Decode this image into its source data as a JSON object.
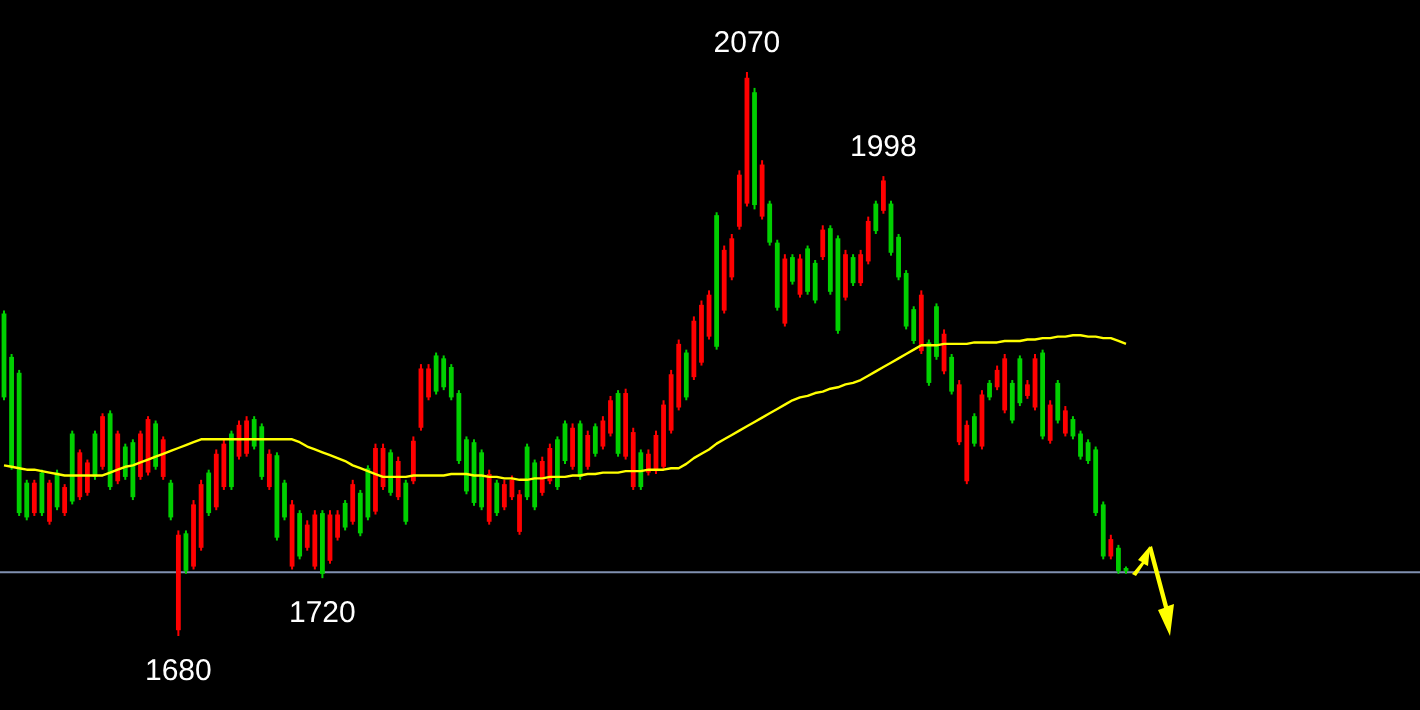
{
  "chart_data": {
    "type": "candlestick",
    "categories": [
      null,
      null,
      null,
      null,
      null,
      null,
      null,
      null,
      null,
      null,
      null,
      null,
      null,
      null,
      null,
      null,
      null,
      null,
      null,
      null,
      null,
      null,
      null,
      null,
      null,
      null,
      null,
      null,
      null,
      null,
      null,
      null,
      null,
      null,
      null,
      null,
      null,
      null,
      null,
      null,
      null,
      null,
      null,
      null,
      null,
      null,
      null,
      null,
      null,
      null,
      null,
      null,
      null,
      null,
      null,
      null,
      null,
      null,
      null,
      null,
      null,
      null,
      null,
      null,
      null,
      null,
      null,
      null,
      null,
      null,
      null,
      null,
      null,
      null,
      null,
      null,
      null,
      null,
      null,
      null,
      null,
      null,
      null,
      null,
      null,
      null,
      null,
      null,
      null,
      null,
      null,
      null,
      null,
      null,
      null,
      null,
      null,
      null,
      null,
      null,
      null,
      null,
      null,
      null,
      null,
      null,
      null,
      null,
      null,
      null,
      null,
      null,
      null,
      null,
      null,
      null,
      null,
      null,
      null,
      null,
      null,
      null,
      null,
      null,
      null,
      null,
      null,
      null,
      null,
      null,
      null,
      null,
      null,
      null,
      null,
      null,
      null,
      null,
      null,
      null,
      null,
      null,
      null,
      null,
      null,
      null,
      null,
      null,
      null
    ],
    "ohlc": [
      [
        1903,
        1905,
        1843,
        1845
      ],
      [
        1873,
        1875,
        1795,
        1797
      ],
      [
        1862,
        1864,
        1763,
        1765
      ],
      [
        1786,
        1788,
        1760,
        1762
      ],
      [
        1765,
        1788,
        1763,
        1786
      ],
      [
        1793,
        1795,
        1763,
        1765
      ],
      [
        1759,
        1788,
        1757,
        1786
      ],
      [
        1793,
        1795,
        1767,
        1769
      ],
      [
        1765,
        1785,
        1763,
        1783
      ],
      [
        1820,
        1822,
        1771,
        1773
      ],
      [
        1776,
        1809,
        1774,
        1807
      ],
      [
        1779,
        1802,
        1777,
        1800
      ],
      [
        1820,
        1822,
        1788,
        1790
      ],
      [
        1797,
        1834,
        1795,
        1832
      ],
      [
        1834,
        1836,
        1781,
        1783
      ],
      [
        1787,
        1822,
        1785,
        1820
      ],
      [
        1811,
        1813,
        1788,
        1790
      ],
      [
        1814,
        1816,
        1774,
        1776
      ],
      [
        1790,
        1822,
        1788,
        1820
      ],
      [
        1793,
        1832,
        1791,
        1830
      ],
      [
        1827,
        1829,
        1795,
        1797
      ],
      [
        1790,
        1818,
        1788,
        1816
      ],
      [
        1786,
        1788,
        1760,
        1762
      ],
      [
        1684,
        1753,
        1680,
        1750
      ],
      [
        1751,
        1753,
        1723,
        1725
      ],
      [
        1728,
        1774,
        1726,
        1771
      ],
      [
        1741,
        1788,
        1739,
        1785
      ],
      [
        1793,
        1795,
        1763,
        1765
      ],
      [
        1769,
        1809,
        1767,
        1806
      ],
      [
        1783,
        1816,
        1781,
        1813
      ],
      [
        1820,
        1822,
        1781,
        1783
      ],
      [
        1804,
        1829,
        1802,
        1826
      ],
      [
        1806,
        1832,
        1804,
        1829
      ],
      [
        1830,
        1832,
        1809,
        1811
      ],
      [
        1825,
        1827,
        1788,
        1790
      ],
      [
        1783,
        1809,
        1781,
        1806
      ],
      [
        1805,
        1807,
        1746,
        1748
      ],
      [
        1786,
        1788,
        1760,
        1762
      ],
      [
        1728,
        1774,
        1726,
        1771
      ],
      [
        1765,
        1767,
        1733,
        1735
      ],
      [
        1741,
        1760,
        1739,
        1757
      ],
      [
        1728,
        1767,
        1726,
        1764
      ],
      [
        1765,
        1767,
        1720,
        1723
      ],
      [
        1732,
        1767,
        1730,
        1764
      ],
      [
        1748,
        1767,
        1746,
        1764
      ],
      [
        1772,
        1774,
        1753,
        1755
      ],
      [
        1759,
        1788,
        1757,
        1785
      ],
      [
        1779,
        1781,
        1749,
        1751
      ],
      [
        1796,
        1798,
        1760,
        1762
      ],
      [
        1766,
        1813,
        1764,
        1810
      ],
      [
        1783,
        1813,
        1781,
        1810
      ],
      [
        1807,
        1809,
        1777,
        1779
      ],
      [
        1776,
        1804,
        1774,
        1801
      ],
      [
        1786,
        1788,
        1757,
        1759
      ],
      [
        1787,
        1818,
        1785,
        1815
      ],
      [
        1824,
        1868,
        1822,
        1865
      ],
      [
        1845,
        1868,
        1843,
        1865
      ],
      [
        1874,
        1876,
        1847,
        1849
      ],
      [
        1872,
        1874,
        1850,
        1852
      ],
      [
        1866,
        1868,
        1843,
        1845
      ],
      [
        1848,
        1850,
        1799,
        1801
      ],
      [
        1816,
        1818,
        1778,
        1780
      ],
      [
        1814,
        1816,
        1770,
        1772
      ],
      [
        1807,
        1809,
        1767,
        1769
      ],
      [
        1759,
        1795,
        1757,
        1792
      ],
      [
        1786,
        1788,
        1763,
        1765
      ],
      [
        1769,
        1788,
        1767,
        1785
      ],
      [
        1776,
        1791,
        1774,
        1788
      ],
      [
        1752,
        1781,
        1750,
        1778
      ],
      [
        1811,
        1813,
        1774,
        1776
      ],
      [
        1800,
        1802,
        1767,
        1769
      ],
      [
        1779,
        1804,
        1777,
        1801
      ],
      [
        1787,
        1813,
        1785,
        1810
      ],
      [
        1816,
        1818,
        1781,
        1783
      ],
      [
        1827,
        1829,
        1799,
        1801
      ],
      [
        1797,
        1827,
        1795,
        1824
      ],
      [
        1827,
        1829,
        1788,
        1790
      ],
      [
        1797,
        1822,
        1795,
        1819
      ],
      [
        1825,
        1827,
        1804,
        1806
      ],
      [
        1811,
        1832,
        1809,
        1829
      ],
      [
        1820,
        1846,
        1818,
        1843
      ],
      [
        1848,
        1850,
        1804,
        1806
      ],
      [
        1804,
        1851,
        1802,
        1848
      ],
      [
        1783,
        1824,
        1781,
        1821
      ],
      [
        1807,
        1809,
        1781,
        1783
      ],
      [
        1793,
        1809,
        1791,
        1806
      ],
      [
        1794,
        1822,
        1792,
        1819
      ],
      [
        1797,
        1843,
        1795,
        1840
      ],
      [
        1822,
        1864,
        1820,
        1861
      ],
      [
        1838,
        1885,
        1836,
        1882
      ],
      [
        1876,
        1878,
        1843,
        1845
      ],
      [
        1859,
        1901,
        1857,
        1898
      ],
      [
        1869,
        1912,
        1867,
        1909
      ],
      [
        1887,
        1919,
        1885,
        1916
      ],
      [
        1971,
        1973,
        1878,
        1880
      ],
      [
        1905,
        1950,
        1903,
        1947
      ],
      [
        1928,
        1958,
        1926,
        1955
      ],
      [
        1963,
        2002,
        1961,
        1999
      ],
      [
        1979,
        2070,
        1977,
        2066
      ],
      [
        2056,
        2059,
        1975,
        1978
      ],
      [
        1970,
        2009,
        1968,
        2006
      ],
      [
        1979,
        1981,
        1950,
        1952
      ],
      [
        1952,
        1954,
        1905,
        1907
      ],
      [
        1896,
        1944,
        1894,
        1941
      ],
      [
        1942,
        1944,
        1923,
        1925
      ],
      [
        1916,
        1944,
        1914,
        1941
      ],
      [
        1948,
        1950,
        1916,
        1918
      ],
      [
        1938,
        1940,
        1910,
        1912
      ],
      [
        1942,
        1964,
        1940,
        1961
      ],
      [
        1962,
        1964,
        1916,
        1918
      ],
      [
        1955,
        1957,
        1889,
        1891
      ],
      [
        1914,
        1947,
        1912,
        1944
      ],
      [
        1942,
        1944,
        1922,
        1924
      ],
      [
        1924,
        1947,
        1922,
        1944
      ],
      [
        1939,
        1970,
        1937,
        1967
      ],
      [
        1979,
        1981,
        1958,
        1960
      ],
      [
        1974,
        1998,
        1972,
        1995
      ],
      [
        1979,
        1981,
        1943,
        1945
      ],
      [
        1956,
        1958,
        1926,
        1928
      ],
      [
        1931,
        1933,
        1892,
        1894
      ],
      [
        1906,
        1908,
        1882,
        1884
      ],
      [
        1877,
        1919,
        1875,
        1916
      ],
      [
        1883,
        1885,
        1853,
        1855
      ],
      [
        1908,
        1910,
        1871,
        1873
      ],
      [
        1863,
        1892,
        1861,
        1889
      ],
      [
        1873,
        1875,
        1847,
        1849
      ],
      [
        1814,
        1857,
        1812,
        1854
      ],
      [
        1787,
        1829,
        1785,
        1826
      ],
      [
        1832,
        1834,
        1811,
        1813
      ],
      [
        1811,
        1850,
        1809,
        1847
      ],
      [
        1855,
        1857,
        1843,
        1845
      ],
      [
        1852,
        1867,
        1850,
        1864
      ],
      [
        1836,
        1875,
        1834,
        1872
      ],
      [
        1855,
        1857,
        1827,
        1829
      ],
      [
        1872,
        1874,
        1839,
        1841
      ],
      [
        1846,
        1857,
        1844,
        1854
      ],
      [
        1838,
        1875,
        1836,
        1872
      ],
      [
        1876,
        1878,
        1816,
        1818
      ],
      [
        1815,
        1843,
        1813,
        1840
      ],
      [
        1855,
        1857,
        1827,
        1829
      ],
      [
        1820,
        1839,
        1818,
        1836
      ],
      [
        1830,
        1832,
        1816,
        1818
      ],
      [
        1820,
        1822,
        1802,
        1804
      ],
      [
        1814,
        1816,
        1799,
        1801
      ],
      [
        1809,
        1811,
        1763,
        1765
      ],
      [
        1771,
        1773,
        1733,
        1735
      ],
      [
        1735,
        1750,
        1733,
        1747
      ],
      [
        1741,
        1743,
        1723,
        1725
      ],
      [
        1727,
        1728,
        1723,
        1725
      ]
    ],
    "colors": [
      "#00d000",
      "#00d000",
      "#00d000",
      "#00d000",
      "#ff0000",
      "#00d000",
      "#ff0000",
      "#00d000",
      "#ff0000",
      "#00d000",
      "#ff0000",
      "#ff0000",
      "#00d000",
      "#ff0000",
      "#00d000",
      "#ff0000",
      "#00d000",
      "#00d000",
      "#ff0000",
      "#ff0000",
      "#00d000",
      "#ff0000",
      "#00d000",
      "#ff0000",
      "#00d000",
      "#ff0000",
      "#ff0000",
      "#00d000",
      "#ff0000",
      "#ff0000",
      "#00d000",
      "#ff0000",
      "#ff0000",
      "#00d000",
      "#00d000",
      "#ff0000",
      "#00d000",
      "#00d000",
      "#ff0000",
      "#00d000",
      "#ff0000",
      "#ff0000",
      "#00d000",
      "#ff0000",
      "#ff0000",
      "#00d000",
      "#ff0000",
      "#00d000",
      "#00d000",
      "#ff0000",
      "#ff0000",
      "#00d000",
      "#ff0000",
      "#00d000",
      "#ff0000",
      "#ff0000",
      "#ff0000",
      "#00d000",
      "#00d000",
      "#00d000",
      "#00d000",
      "#00d000",
      "#00d000",
      "#00d000",
      "#ff0000",
      "#00d000",
      "#ff0000",
      "#ff0000",
      "#ff0000",
      "#00d000",
      "#00d000",
      "#ff0000",
      "#ff0000",
      "#00d000",
      "#00d000",
      "#ff0000",
      "#00d000",
      "#ff0000",
      "#00d000",
      "#ff0000",
      "#ff0000",
      "#00d000",
      "#ff0000",
      "#ff0000",
      "#00d000",
      "#ff0000",
      "#ff0000",
      "#ff0000",
      "#ff0000",
      "#ff0000",
      "#00d000",
      "#ff0000",
      "#ff0000",
      "#ff0000",
      "#00d000",
      "#ff0000",
      "#ff0000",
      "#ff0000",
      "#ff0000",
      "#00d000",
      "#ff0000",
      "#00d000",
      "#00d000",
      "#ff0000",
      "#00d000",
      "#ff0000",
      "#00d000",
      "#00d000",
      "#ff0000",
      "#00d000",
      "#00d000",
      "#ff0000",
      "#00d000",
      "#ff0000",
      "#ff0000",
      "#00d000",
      "#ff0000",
      "#00d000",
      "#00d000",
      "#00d000",
      "#00d000",
      "#ff0000",
      "#00d000",
      "#00d000",
      "#ff0000",
      "#00d000",
      "#ff0000",
      "#ff0000",
      "#00d000",
      "#ff0000",
      "#00d000",
      "#ff0000",
      "#ff0000",
      "#00d000",
      "#00d000",
      "#ff0000",
      "#ff0000",
      "#00d000",
      "#ff0000",
      "#00d000",
      "#ff0000",
      "#00d000",
      "#00d000",
      "#00d000",
      "#00d000",
      "#00d000",
      "#ff0000",
      "#00d000",
      "#00d000"
    ],
    "series": [
      {
        "type": "line",
        "color": "#ffff00",
        "values": [
          1798,
          1797,
          1796,
          1795,
          1795,
          1794,
          1793,
          1792,
          1791,
          1791,
          1791,
          1791,
          1791,
          1791,
          1793,
          1795,
          1797,
          1798,
          1800,
          1802,
          1804,
          1806,
          1808,
          1810,
          1812,
          1814,
          1816,
          1816,
          1816,
          1816,
          1816,
          1816,
          1816,
          1816,
          1816,
          1816,
          1816,
          1816,
          1816,
          1814,
          1811,
          1809,
          1807,
          1805,
          1803,
          1801,
          1798,
          1796,
          1794,
          1792,
          1790,
          1790,
          1790,
          1790,
          1791,
          1791,
          1791,
          1791,
          1791,
          1792,
          1792,
          1792,
          1791,
          1791,
          1790,
          1790,
          1789,
          1789,
          1788,
          1788,
          1789,
          1789,
          1790,
          1790,
          1790,
          1791,
          1791,
          1792,
          1792,
          1793,
          1793,
          1793,
          1794,
          1794,
          1794,
          1795,
          1795,
          1795,
          1796,
          1796,
          1799,
          1803,
          1806,
          1809,
          1813,
          1816,
          1819,
          1822,
          1825,
          1828,
          1831,
          1834,
          1837,
          1840,
          1843,
          1845,
          1846,
          1848,
          1849,
          1851,
          1852,
          1854,
          1855,
          1857,
          1860,
          1863,
          1866,
          1869,
          1872,
          1875,
          1878,
          1881,
          1881,
          1881,
          1882,
          1882,
          1882,
          1882,
          1883,
          1883,
          1883,
          1883,
          1884,
          1884,
          1884,
          1885,
          1885,
          1886,
          1886,
          1887,
          1887,
          1888,
          1888,
          1887,
          1887,
          1886,
          1886,
          1884,
          1882
        ]
      }
    ],
    "ref_lines": [
      {
        "axis": "y",
        "value": 1724,
        "color": "#8090b0"
      }
    ],
    "annotations": [
      {
        "text": "2070",
        "y": 2070
      },
      {
        "text": "1998",
        "y": 1998
      },
      {
        "text": "1720",
        "y": 1720
      },
      {
        "text": "1680",
        "y": 1680
      }
    ]
  }
}
